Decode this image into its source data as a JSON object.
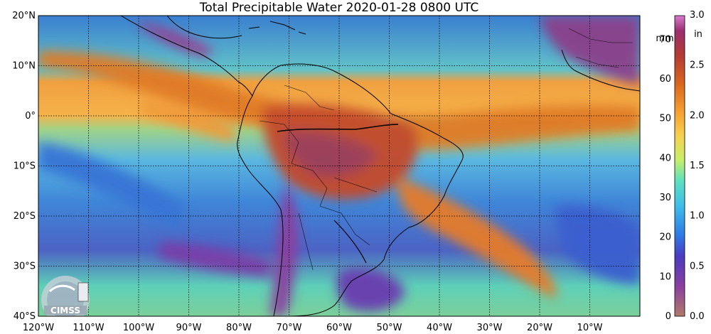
{
  "title": "Total Precipitable Water  2020-01-28 0800 UTC",
  "map": {
    "lat_labels": [
      "20°N",
      "10°N",
      "0°",
      "10°S",
      "20°S",
      "30°S",
      "40°S"
    ],
    "lon_labels": [
      "120°W",
      "110°W",
      "100°W",
      "90°W",
      "80°W",
      "70°W",
      "60°W",
      "50°W",
      "40°W",
      "30°W",
      "20°W",
      "10°W"
    ],
    "lon_range": [
      -120,
      0
    ],
    "lat_range": [
      -40,
      20
    ]
  },
  "colorbar": {
    "mm_unit": "mm",
    "in_unit": "in",
    "mm_ticks": [
      "0",
      "10",
      "20",
      "30",
      "40",
      "50",
      "60",
      "70"
    ],
    "in_ticks": [
      "0.0",
      "0.5",
      "1.0",
      "1.5",
      "2.0",
      "2.5",
      "3.0"
    ],
    "range_mm": [
      0,
      76
    ]
  },
  "logo": {
    "text": "CIMSS"
  }
}
